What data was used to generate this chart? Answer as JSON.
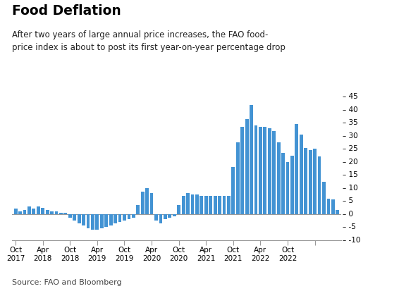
{
  "title": "Food Deflation",
  "subtitle": "After two years of large annual price increases, the FAO food-\nprice index is about to post its first year-on-year percentage drop",
  "source": "Source: FAO and Bloomberg",
  "bar_color": "#4393d3",
  "background_color": "#ffffff",
  "ylim": [
    -10,
    47
  ],
  "yticks": [
    -10,
    -5,
    0,
    5,
    10,
    15,
    20,
    25,
    30,
    35,
    40,
    45
  ],
  "values": [
    2.0,
    1.0,
    1.5,
    3.0,
    2.0,
    3.0,
    2.5,
    1.5,
    1.0,
    1.0,
    0.5,
    0.5,
    -1.5,
    -2.5,
    -3.5,
    -4.5,
    -5.5,
    -6.0,
    -6.0,
    -5.5,
    -5.0,
    -4.5,
    -3.5,
    -3.0,
    -2.5,
    -2.0,
    -1.5,
    3.5,
    8.5,
    10.0,
    8.0,
    -2.5,
    -3.5,
    -2.0,
    -1.5,
    -1.0,
    3.5,
    7.0,
    8.0,
    7.5,
    7.5,
    7.0,
    7.0,
    7.0,
    7.0,
    7.0,
    7.0,
    7.0,
    18.0,
    27.5,
    33.5,
    36.5,
    42.0,
    34.0,
    33.5,
    33.5,
    33.0,
    32.0,
    27.5,
    23.5,
    20.0,
    22.5,
    34.5,
    30.5,
    25.5,
    24.5,
    25.0,
    22.0,
    12.5,
    6.0,
    5.5,
    1.5
  ],
  "xtick_positions": [
    0,
    6,
    12,
    18,
    24,
    30,
    36,
    42,
    48,
    54,
    60,
    66
  ],
  "xtick_labels": [
    "Oct\n2017",
    "Apr\n2018",
    "Oct\n2018",
    "Apr\n2019",
    "Oct\n2019",
    "Apr\n2020",
    "Oct\n2020",
    "Apr\n2021",
    "Oct\n2021",
    "Apr\n2022",
    "Oct\n2022",
    ""
  ]
}
